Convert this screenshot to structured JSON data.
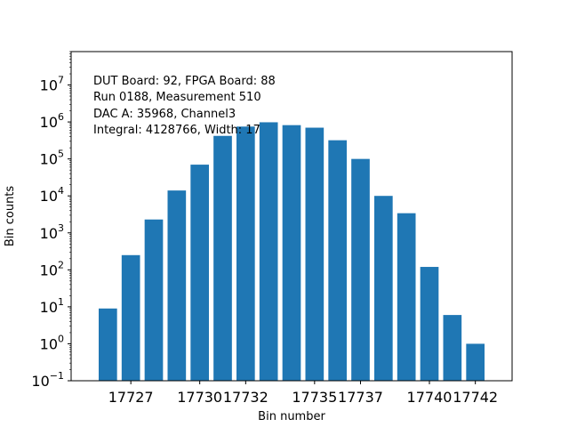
{
  "chart_data": {
    "type": "bar",
    "log_scale_y": true,
    "xlabel": "Bin number",
    "ylabel": "Bin counts",
    "x": [
      17726,
      17727,
      17728,
      17729,
      17730,
      17731,
      17732,
      17733,
      17734,
      17735,
      17736,
      17737,
      17738,
      17739,
      17740,
      17741,
      17742
    ],
    "values": [
      9,
      250,
      2300,
      14000,
      70000,
      420000,
      750000,
      980000,
      820000,
      700000,
      320000,
      100000,
      10000,
      3400,
      120,
      6,
      1
    ],
    "xlim": [
      17724.4,
      17743.6
    ],
    "ylim": [
      0.1,
      80000000
    ],
    "x_ticks": [
      17727,
      17730,
      17732,
      17735,
      17737,
      17740,
      17742
    ],
    "x_tick_labels": [
      "17727",
      "17730",
      "17732",
      "17735",
      "17737",
      "17740",
      "17742"
    ],
    "y_ticks": [
      -1,
      0,
      1,
      2,
      3,
      4,
      5,
      6,
      7
    ],
    "y_tick_base": "10",
    "y_tick_exponents": [
      "−1",
      "0",
      "1",
      "2",
      "3",
      "4",
      "5",
      "6",
      "7"
    ],
    "annotations": [
      "DUT Board: 92, FPGA Board: 88",
      "Run 0188, Measurement 510",
      "DAC A: 35968, Channel3",
      "Integral: 4128766, Width: 17"
    ],
    "bar_color": "#1f77b4",
    "grid": false,
    "legend": "none"
  }
}
